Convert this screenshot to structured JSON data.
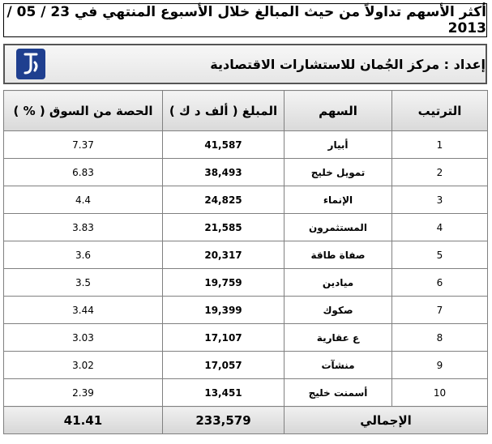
{
  "title": "أكثر الأسهم تداولاً من حيث المبالغ خلال الأسبوع المنتهي في 23 / 05 / 2013",
  "source": "إعداد : مركز الجُمان للاستشارات الاقتصادية",
  "headers": {
    "rank": "الترتيب",
    "stock": "السهم",
    "amount": "المبلغ ( ألف د ك )",
    "share": "الحصة من السوق ( % )"
  },
  "rows": [
    {
      "rank": "1",
      "stock": "أبيار",
      "amount": "41,587",
      "share": "7.37"
    },
    {
      "rank": "2",
      "stock": "تمويل خليج",
      "amount": "38,493",
      "share": "6.83"
    },
    {
      "rank": "3",
      "stock": "الإنماء",
      "amount": "24,825",
      "share": "4.4"
    },
    {
      "rank": "4",
      "stock": "المستثمرون",
      "amount": "21,585",
      "share": "3.83"
    },
    {
      "rank": "5",
      "stock": "صفاة طاقة",
      "amount": "20,317",
      "share": "3.6"
    },
    {
      "rank": "6",
      "stock": "ميادين",
      "amount": "19,759",
      "share": "3.5"
    },
    {
      "rank": "7",
      "stock": "صكوك",
      "amount": "19,399",
      "share": "3.44"
    },
    {
      "rank": "8",
      "stock": "ع عقارية",
      "amount": "17,107",
      "share": "3.03"
    },
    {
      "rank": "9",
      "stock": "منشآت",
      "amount": "17,057",
      "share": "3.02"
    },
    {
      "rank": "10",
      "stock": "أسمنت خليج",
      "amount": "13,451",
      "share": "2.39"
    }
  ],
  "total": {
    "label": "الإجمالي",
    "amount": "233,579",
    "share": "41.41"
  },
  "colors": {
    "logo": "#1f3f8f"
  }
}
